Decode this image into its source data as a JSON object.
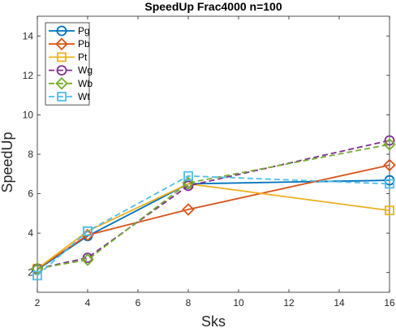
{
  "chart_data": {
    "type": "line",
    "title": "SpeedUp Frac4000 n=100",
    "xlabel": "Sks",
    "ylabel": "SpeedUp",
    "xlim": [
      2,
      16
    ],
    "ylim": [
      1,
      15
    ],
    "xticks": [
      2,
      4,
      6,
      8,
      10,
      12,
      14,
      16
    ],
    "yticks": [
      2,
      4,
      6,
      8,
      10,
      12,
      14
    ],
    "grid": false,
    "legend_position": "top-left",
    "x": [
      2,
      4,
      8,
      16
    ],
    "series": [
      {
        "name": "Pg",
        "values": [
          2.15,
          3.85,
          6.5,
          6.68
        ],
        "color": "#0072BD",
        "dash": "solid",
        "marker": "circle"
      },
      {
        "name": "Pb",
        "values": [
          2.2,
          3.9,
          5.2,
          7.45
        ],
        "color": "#D95319",
        "dash": "solid",
        "marker": "diamond"
      },
      {
        "name": "Pt",
        "values": [
          2.2,
          4.1,
          6.5,
          5.15
        ],
        "color": "#EDB120",
        "dash": "solid",
        "marker": "square"
      },
      {
        "name": "Wg",
        "values": [
          2.2,
          2.75,
          6.4,
          8.7
        ],
        "color": "#7E2F8E",
        "dash": "dashed",
        "marker": "circle"
      },
      {
        "name": "Wb",
        "values": [
          2.2,
          2.65,
          6.55,
          8.5
        ],
        "color": "#77AC30",
        "dash": "dashed",
        "marker": "diamond"
      },
      {
        "name": "Wt",
        "values": [
          1.85,
          4.1,
          6.9,
          6.5
        ],
        "color": "#4DBEEE",
        "dash": "dashed",
        "marker": "square"
      }
    ]
  }
}
